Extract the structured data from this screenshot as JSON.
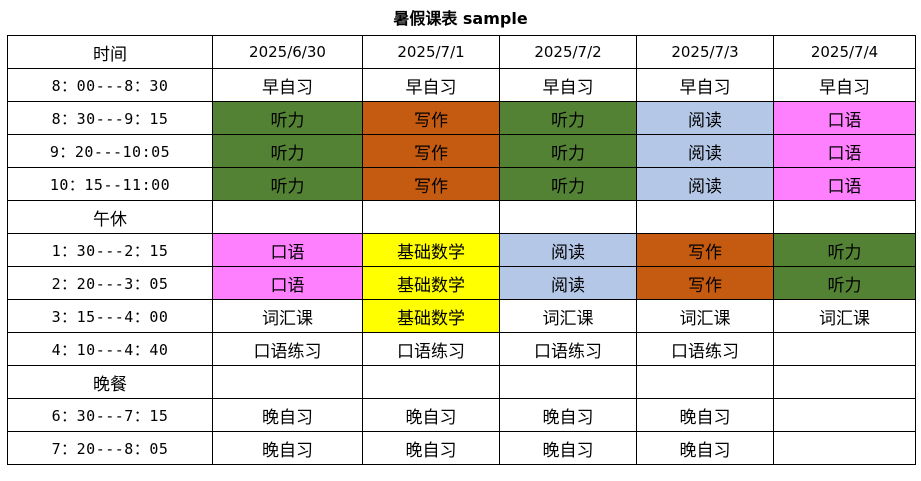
{
  "title": "暑假课表 sample",
  "header": {
    "time_label": "时间",
    "dates": [
      "2025/6/30",
      "2025/7/1",
      "2025/7/2",
      "2025/7/3",
      "2025/7/4"
    ]
  },
  "colors": {
    "听力": "#548235",
    "写作": "#C55A11",
    "阅读": "#B4C7E7",
    "口语": "#FF80FF",
    "基础数学": "#FFFF00"
  },
  "rows": [
    {
      "time": "8：00---8：30",
      "cells": [
        "早自习",
        "早自习",
        "早自习",
        "早自习",
        "早自习"
      ]
    },
    {
      "time": "8：30---9：15",
      "cells": [
        "听力",
        "写作",
        "听力",
        "阅读",
        "口语"
      ]
    },
    {
      "time": "9：20---10:05",
      "cells": [
        "听力",
        "写作",
        "听力",
        "阅读",
        "口语"
      ]
    },
    {
      "time": "10：15--11:00",
      "cells": [
        "听力",
        "写作",
        "听力",
        "阅读",
        "口语"
      ]
    },
    {
      "time": "午休",
      "cells": [
        "",
        "",
        "",
        "",
        ""
      ]
    },
    {
      "time": "1：30---2：15",
      "cells": [
        "口语",
        "基础数学",
        "阅读",
        "写作",
        "听力"
      ]
    },
    {
      "time": "2：20---3：05",
      "cells": [
        "口语",
        "基础数学",
        "阅读",
        "写作",
        "听力"
      ]
    },
    {
      "time": "3：15---4：00",
      "cells": [
        "词汇课",
        "基础数学",
        "词汇课",
        "词汇课",
        "词汇课"
      ]
    },
    {
      "time": "4：10---4：40",
      "cells": [
        "口语练习",
        "口语练习",
        "口语练习",
        "口语练习",
        ""
      ]
    },
    {
      "time": "晚餐",
      "cells": [
        "",
        "",
        "",
        "",
        ""
      ]
    },
    {
      "time": "6：30---7：15",
      "cells": [
        "晚自习",
        "晚自习",
        "晚自习",
        "晚自习",
        ""
      ]
    },
    {
      "time": "7：20---8：05",
      "cells": [
        "晚自习",
        "晚自习",
        "晚自习",
        "晚自习",
        ""
      ]
    }
  ]
}
